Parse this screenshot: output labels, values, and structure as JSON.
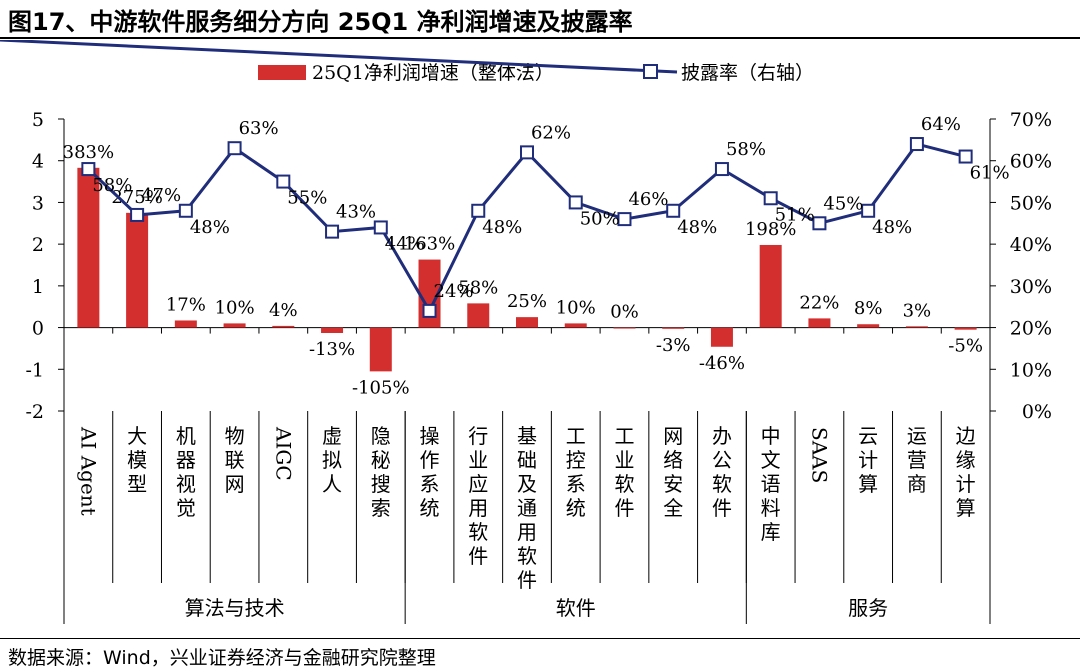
{
  "title": "图17、中游软件服务细分方向 25Q1 净利润增速及披露率",
  "source": "数据来源：Wind，兴业证券经济与金融研究院整理",
  "chart_data": {
    "type": "bar",
    "categories": [
      "AI Agent",
      "大模型",
      "机器视觉",
      "物联网",
      "AIGC",
      "虚拟人",
      "隐秘搜索",
      "操作系统",
      "行业应用软件",
      "基础及通用软件",
      "工控系统",
      "工业软件",
      "网络安全",
      "办公软件",
      "中文语料库",
      "SAAS",
      "云计算",
      "运营商",
      "边缘计算"
    ],
    "category_groups": [
      {
        "name": "算法与技术",
        "count": 7
      },
      {
        "name": "软件",
        "count": 7
      },
      {
        "name": "服务",
        "count": 5
      }
    ],
    "series": [
      {
        "name": "25Q1净利润增速（整体法）",
        "type": "bar",
        "axis": "left",
        "color": "#d32f2f",
        "values": [
          3.83,
          2.75,
          0.17,
          0.1,
          0.04,
          -0.13,
          -1.05,
          1.63,
          0.58,
          0.25,
          0.1,
          0.0,
          -0.03,
          -0.46,
          1.98,
          0.22,
          0.08,
          0.03,
          -0.05
        ],
        "labels": [
          "383%",
          "275%",
          "17%",
          "10%",
          "4%",
          "-13%",
          "-105%",
          "163%",
          "58%",
          "25%",
          "10%",
          "0%",
          "-3%",
          "-46%",
          "198%",
          "22%",
          "8%",
          "3%",
          "-5%"
        ]
      },
      {
        "name": "披露率（右轴）",
        "type": "line",
        "axis": "right",
        "color": "#1f2d7a",
        "values": [
          58,
          47,
          48,
          63,
          55,
          43,
          44,
          24,
          48,
          62,
          50,
          46,
          48,
          58,
          51,
          45,
          48,
          64,
          61
        ],
        "labels": [
          "58%",
          "47%",
          "48%",
          "63%",
          "55%",
          "43%",
          "44%",
          "24%",
          "48%",
          "62%",
          "50%",
          "46%",
          "48%",
          "58%",
          "51%",
          "45%",
          "48%",
          "64%",
          "61%"
        ]
      }
    ],
    "y_left": {
      "min": -2,
      "max": 5,
      "ticks": [
        "5",
        "4",
        "3",
        "2",
        "1",
        "0",
        "-1",
        "-2"
      ]
    },
    "y_right": {
      "min": 0,
      "max": 70,
      "ticks": [
        "70%",
        "60%",
        "50%",
        "40%",
        "30%",
        "20%",
        "10%",
        "0%"
      ]
    },
    "legend_position": "top",
    "grid": false
  }
}
